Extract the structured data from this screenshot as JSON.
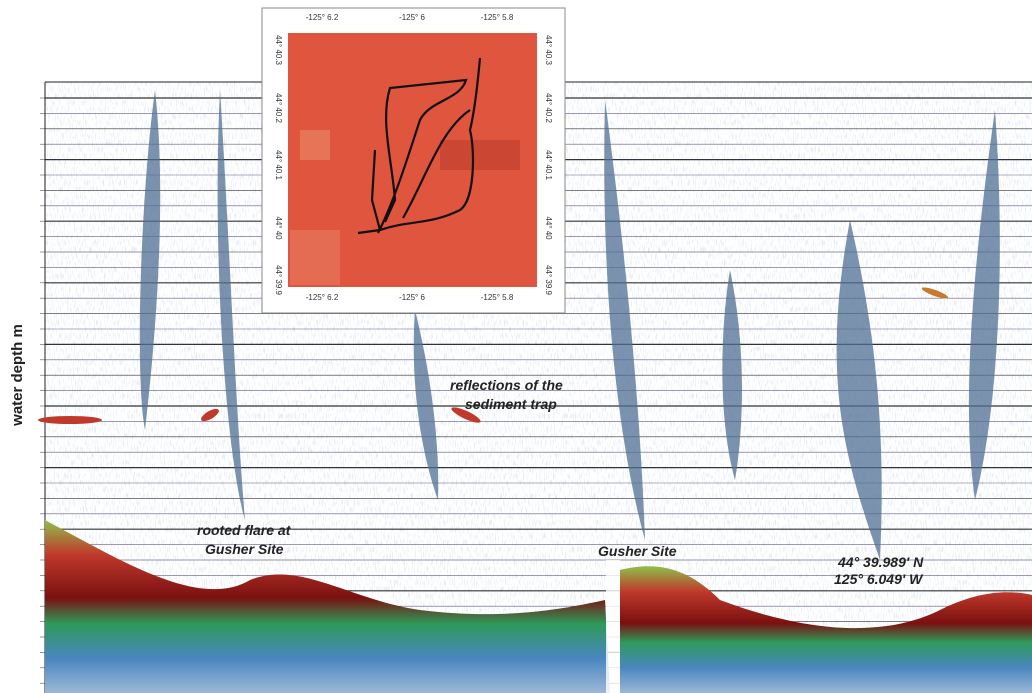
{
  "axis_label": "water depth m",
  "annotations": {
    "sediment_trap": [
      "reflections of the",
      "sediment trap"
    ],
    "rooted_flare": [
      "rooted flare at",
      "Gusher Site"
    ],
    "gusher": "Gusher Site",
    "position": [
      "44° 39.989' N",
      "125° 6.049' W"
    ]
  },
  "inset_map": {
    "lon_ticks": [
      "-125° 6.2",
      "-125° 6",
      "-125° 5.8"
    ],
    "lat_ticks": [
      "44° 40.3",
      "44° 40.2",
      "44° 40.1",
      "44° 40",
      "44° 39.9"
    ]
  }
}
